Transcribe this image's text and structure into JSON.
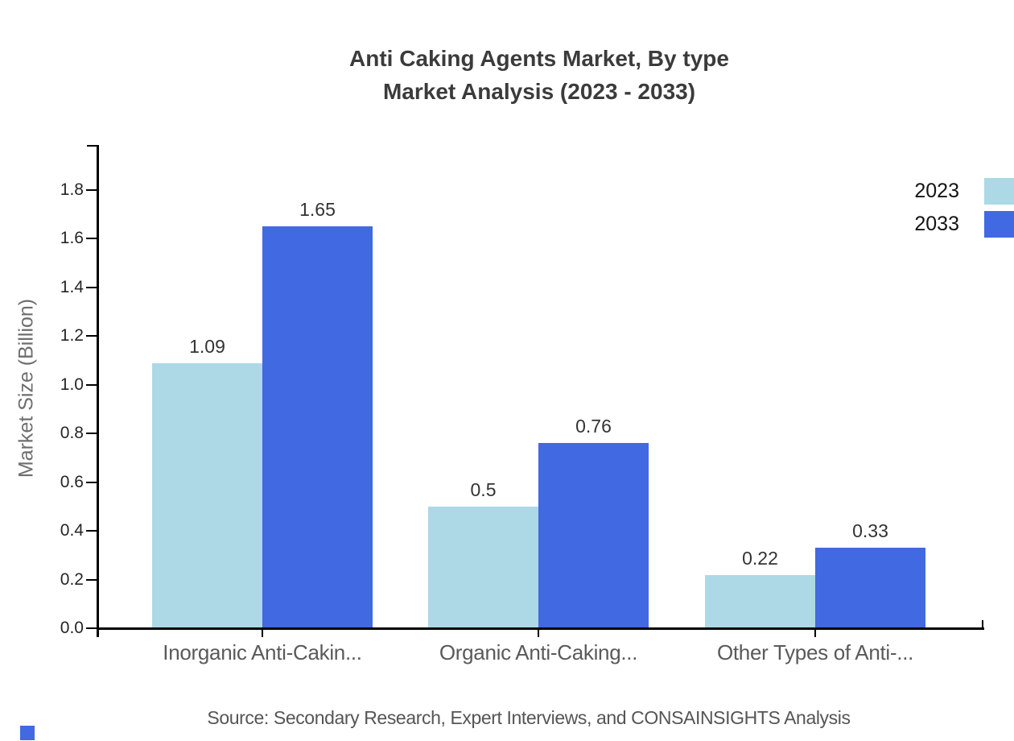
{
  "title": {
    "line1": "Anti Caking Agents Market, By type",
    "line2": "Market Analysis (2023 - 2033)"
  },
  "chart_data": {
    "type": "bar",
    "categories": [
      "Inorganic Anti-Cakin...",
      "Organic Anti-Caking...",
      "Other Types of Anti-..."
    ],
    "series": [
      {
        "name": "2023",
        "color": "#add8e6",
        "values": [
          1.09,
          0.5,
          0.22
        ]
      },
      {
        "name": "2033",
        "color": "#4169e1",
        "values": [
          1.65,
          0.76,
          0.33
        ]
      }
    ],
    "value_labels": [
      "1.09",
      "1.65",
      "0.5",
      "0.76",
      "0.22",
      "0.33"
    ],
    "xlabel": "",
    "ylabel": "Market Size (Billion)",
    "ylim": [
      0,
      1.9
    ],
    "yticks": [
      0.0,
      0.2,
      0.4,
      0.6,
      0.8,
      1.0,
      1.2,
      1.4,
      1.6,
      1.8
    ],
    "grid": false,
    "legend_position": "top-right"
  },
  "source": "Source: Secondary Research, Expert Interviews, and CONSAINSIGHTS Analysis",
  "colors": {
    "series_2023": "#add8e6",
    "series_2033": "#4169e1",
    "axis": "#000000",
    "title_text": "#3b3b3b",
    "brand_mark": "#4169e1"
  }
}
